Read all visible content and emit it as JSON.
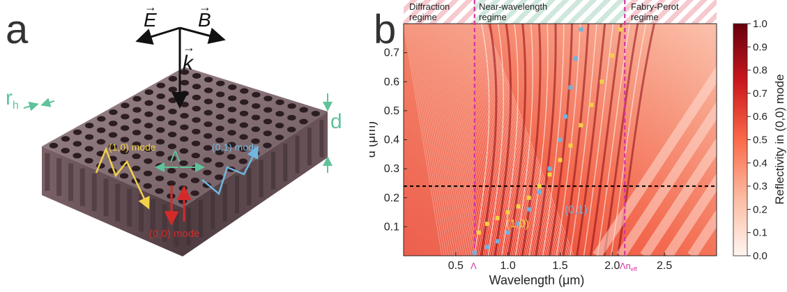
{
  "panel_a": {
    "letter": "a",
    "vectors": {
      "E": "E",
      "B": "B",
      "k": "k"
    },
    "labels": {
      "rh_main": "r",
      "rh_sub": "h",
      "d": "d",
      "lambda": "Λ",
      "mode_10": "(1,0) mode",
      "mode_01": "(0,1) mode",
      "mode_00": "(0,0) mode"
    },
    "colors": {
      "slab_top": "#8a7479",
      "slab_side": "#5e4a4f",
      "hole": "#2b1d21",
      "mode_10": "#f2d24a",
      "mode_01": "#6fb7e0",
      "mode_00": "#d42a2a",
      "dim": "#5fc39a"
    }
  },
  "panel_b": {
    "letter": "b",
    "regimes": [
      {
        "line1": "Diffraction",
        "line2": "regime"
      },
      {
        "line1": "Near-wavelength",
        "line2": "regime"
      },
      {
        "line1": "Fabry-Perot",
        "line2": "regime"
      }
    ],
    "curve_labels": {
      "c10": "(1,0)",
      "c01": "(0,1)"
    },
    "markers": {
      "lambda": "Λ",
      "lambda_neff_main": "Λn",
      "lambda_neff_sub": "eff"
    },
    "colorbar": {
      "label": "Reflectivity in (0,0) mode",
      "ticks": [
        "1.0",
        "0.9",
        "0.8",
        "0.7",
        "0.6",
        "0.5",
        "0.4",
        "0.3",
        "0.2",
        "0.1",
        "0.0"
      ],
      "colors": {
        "high": "#67000d",
        "mid": "#e8392c",
        "low": "#fff5f0"
      }
    },
    "colors": {
      "c10": "#f4d046",
      "c01": "#6fb3df",
      "vline": "#d633a3",
      "hline": "#000000"
    }
  },
  "chart_data": {
    "type": "heatmap",
    "title": "",
    "xlabel": "Wavelength (μm)",
    "ylabel": "d (μm)",
    "xlim": [
      0.0,
      3.0
    ],
    "ylim": [
      0.0,
      0.8
    ],
    "xticks": [
      0.5,
      1.0,
      1.5,
      2.0,
      2.5
    ],
    "yticks": [
      0.1,
      0.2,
      0.3,
      0.4,
      0.5,
      0.6,
      0.7
    ],
    "colorbar_range": [
      0.0,
      1.0
    ],
    "vertical_lines": [
      {
        "label": "Λ",
        "x": 0.68
      },
      {
        "label": "Λn_eff",
        "x": 2.12
      }
    ],
    "horizontal_line_y": 0.24,
    "series": [
      {
        "name": "(1,0)",
        "x": [
          0.72,
          0.8,
          0.9,
          1.0,
          1.1,
          1.2,
          1.3,
          1.4,
          1.5,
          1.6,
          1.7,
          1.8,
          1.9,
          2.0,
          2.08
        ],
        "y": [
          0.08,
          0.11,
          0.13,
          0.15,
          0.17,
          0.2,
          0.24,
          0.28,
          0.33,
          0.38,
          0.45,
          0.52,
          0.6,
          0.69,
          0.78
        ]
      },
      {
        "name": "(0,1)",
        "x": [
          0.68,
          0.8,
          0.9,
          1.0,
          1.1,
          1.2,
          1.3,
          1.4,
          1.5,
          1.55,
          1.6,
          1.65,
          1.7
        ],
        "y": [
          0.01,
          0.03,
          0.05,
          0.08,
          0.11,
          0.16,
          0.22,
          0.3,
          0.4,
          0.48,
          0.58,
          0.68,
          0.78
        ]
      }
    ]
  }
}
